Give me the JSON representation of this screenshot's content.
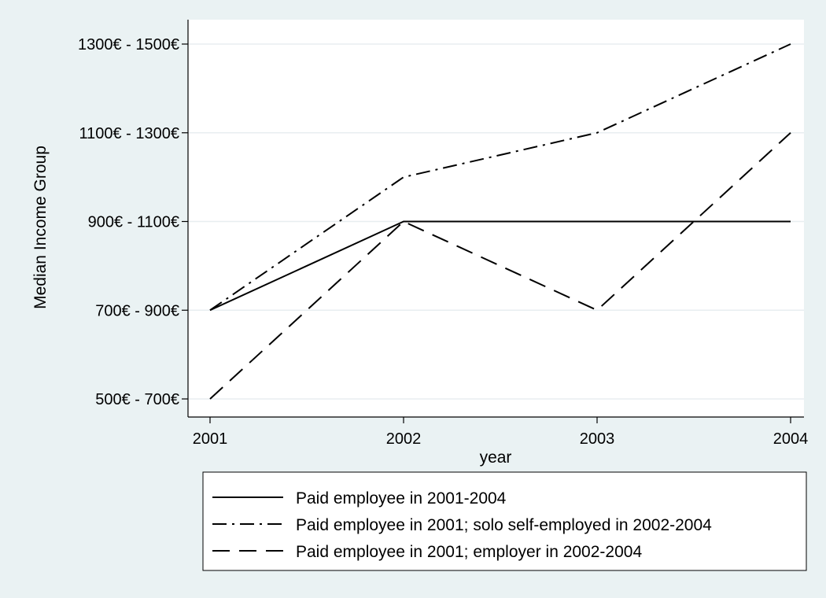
{
  "chart_data": {
    "type": "line",
    "title": "",
    "xlabel": "year",
    "ylabel": "Median Income Group",
    "categories": [
      "2001",
      "2002",
      "2003",
      "2004"
    ],
    "y_tick_labels": [
      "500€ - 700€",
      "700€ - 900€",
      "900€ - 1100€",
      "1100€ - 1300€",
      "1300€ - 1500€"
    ],
    "ylim": [
      1,
      5
    ],
    "grid": true,
    "legend_position": "bottom",
    "series": [
      {
        "name": "Paid employee in 2001-2004",
        "values": [
          2,
          3,
          3,
          3
        ],
        "line_style": "solid",
        "color": "#000000"
      },
      {
        "name": "Paid employee in 2001; solo self-employed in 2002-2004",
        "values": [
          2,
          3.5,
          4,
          5
        ],
        "line_style": "dashdot",
        "color": "#000000"
      },
      {
        "name": "Paid employee in 2001; employer in 2002-2004",
        "values": [
          1,
          3,
          2,
          4
        ],
        "line_style": "dash",
        "color": "#000000"
      }
    ]
  }
}
